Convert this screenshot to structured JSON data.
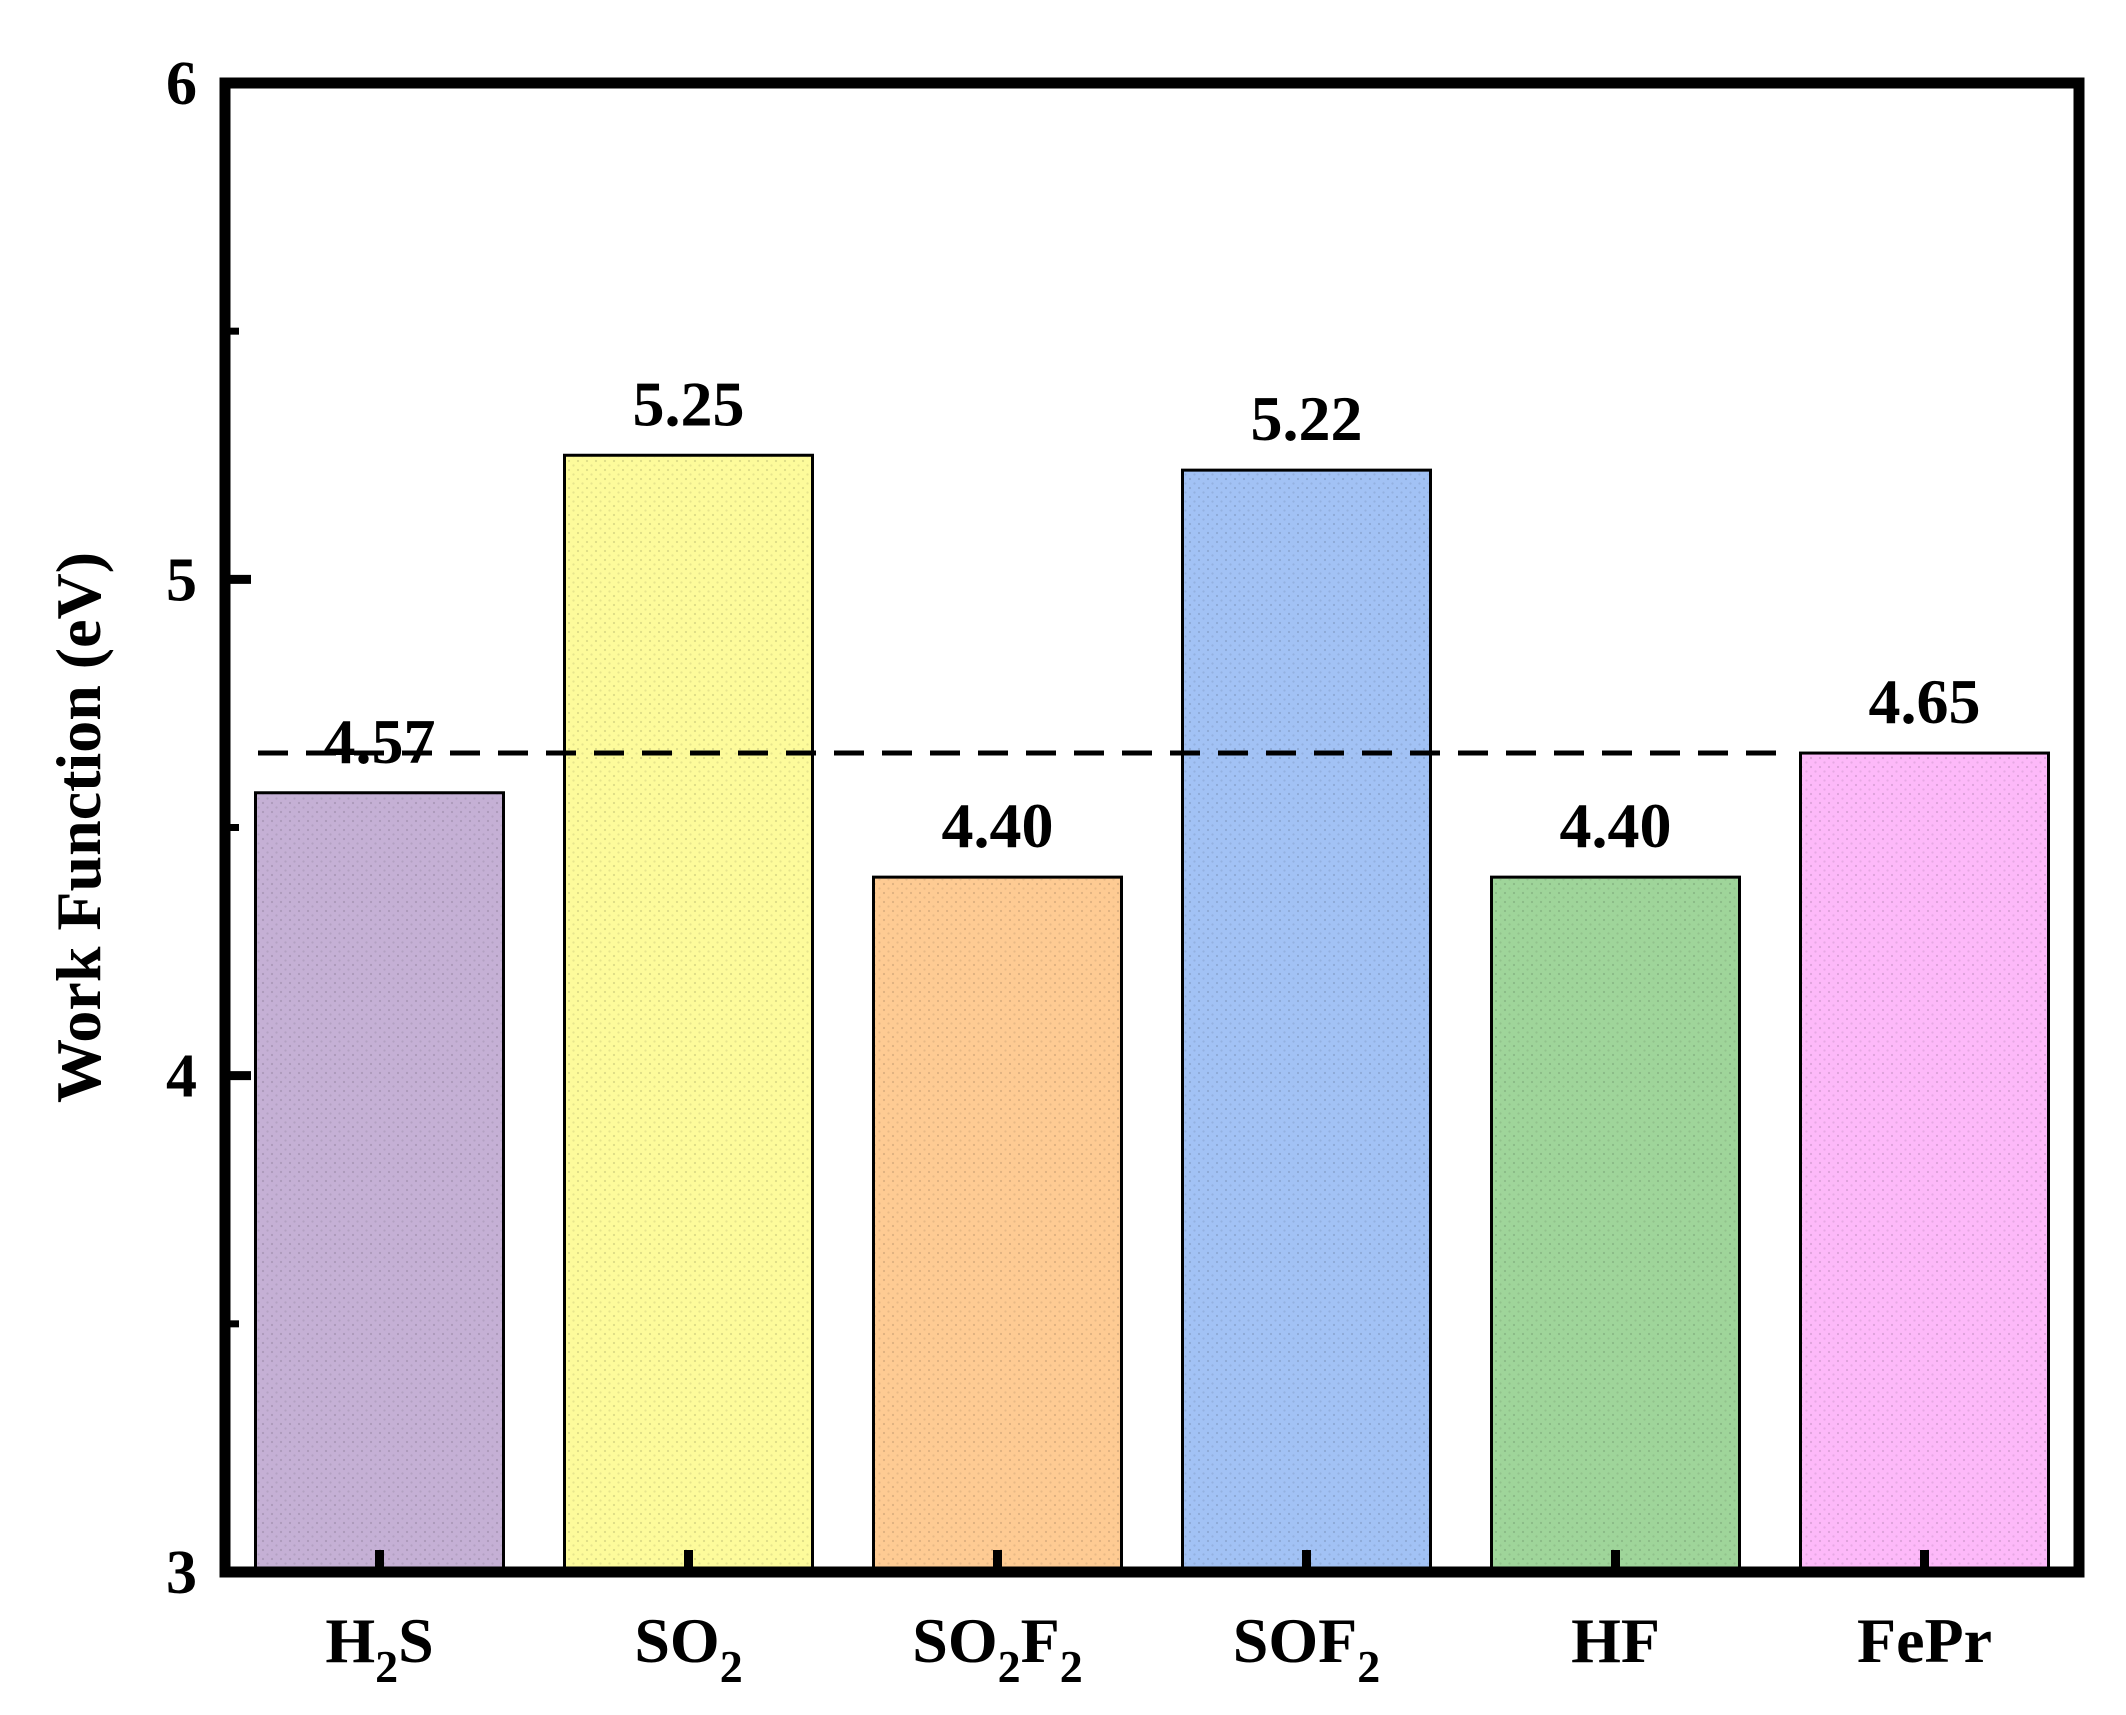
{
  "chart_data": {
    "type": "bar",
    "title": "",
    "xlabel": "",
    "ylabel": "Work Function (eV)",
    "ylim": [
      3,
      6
    ],
    "yticks": [
      "3",
      "4",
      "5",
      "6"
    ],
    "grid": false,
    "legend": "none",
    "categories": [
      {
        "name": "H2S",
        "parts": [
          {
            "t": "H",
            "sub": false
          },
          {
            "t": "2",
            "sub": true
          },
          {
            "t": "S",
            "sub": false
          }
        ]
      },
      {
        "name": "SO2",
        "parts": [
          {
            "t": "SO",
            "sub": false
          },
          {
            "t": "2",
            "sub": true
          }
        ]
      },
      {
        "name": "SO2F2",
        "parts": [
          {
            "t": "SO",
            "sub": false
          },
          {
            "t": "2",
            "sub": true
          },
          {
            "t": "F",
            "sub": false
          },
          {
            "t": "2",
            "sub": true
          }
        ]
      },
      {
        "name": "SOF2",
        "parts": [
          {
            "t": "SOF",
            "sub": false
          },
          {
            "t": "2",
            "sub": true
          }
        ]
      },
      {
        "name": "HF",
        "parts": [
          {
            "t": "HF",
            "sub": false
          }
        ]
      },
      {
        "name": "FePr",
        "parts": [
          {
            "t": "FePr",
            "sub": false
          }
        ]
      }
    ],
    "values": [
      4.57,
      5.25,
      4.4,
      5.22,
      4.4,
      4.65
    ],
    "value_labels": [
      "4.57",
      "5.25",
      "4.40",
      "5.22",
      "4.40",
      "4.65"
    ],
    "colors": [
      "#c5b0d5",
      "#fdfb9b",
      "#fecb93",
      "#a2c2f5",
      "#9fd59a",
      "#fdb9f9"
    ],
    "reference_line": {
      "value": 4.65,
      "style": "dashed",
      "color": "#000000"
    }
  }
}
